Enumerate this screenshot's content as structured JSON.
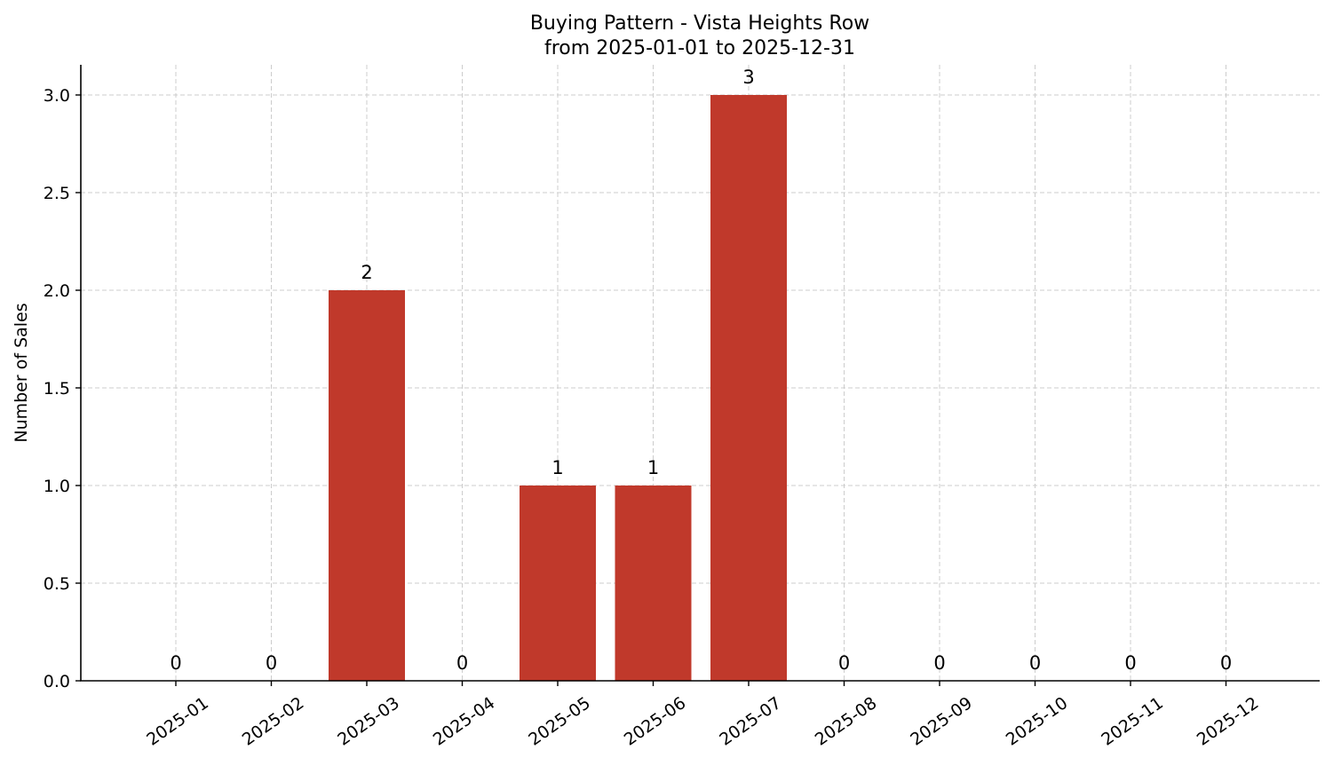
{
  "chart_data": {
    "type": "bar",
    "title_line1": "Buying Pattern - Vista Heights Row",
    "title_line2": "from 2025-01-01 to 2025-12-31",
    "xlabel": "",
    "ylabel": "Number of Sales",
    "categories": [
      "2025-01",
      "2025-02",
      "2025-03",
      "2025-04",
      "2025-05",
      "2025-06",
      "2025-07",
      "2025-08",
      "2025-09",
      "2025-10",
      "2025-11",
      "2025-12"
    ],
    "values": [
      0,
      0,
      2,
      0,
      1,
      1,
      3,
      0,
      0,
      0,
      0,
      0
    ],
    "ylim": [
      0,
      3.15
    ],
    "yticks": [
      "0.0",
      "0.5",
      "1.0",
      "1.5",
      "2.0",
      "2.5",
      "3.0"
    ],
    "bar_color": "#c0392b",
    "grid": true,
    "legend": "none"
  }
}
